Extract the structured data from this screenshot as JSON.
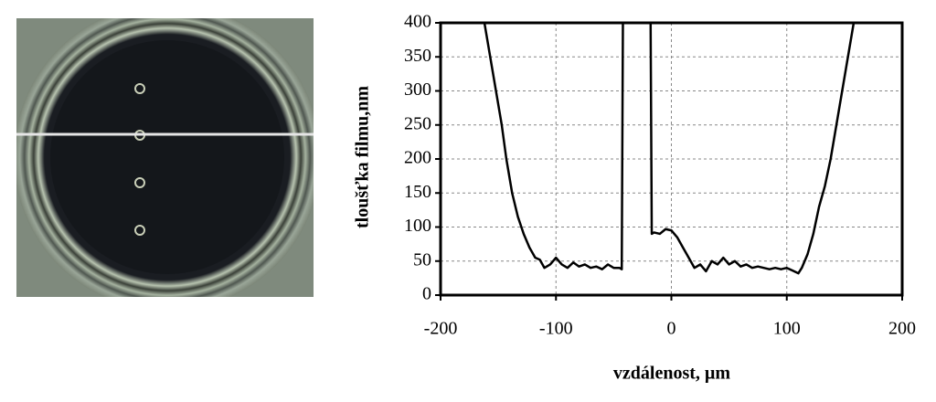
{
  "chart_data": {
    "type": "line",
    "x_label": "vzdálenost,  µm",
    "y_label": "tloušťka filmu,nm",
    "xlim": [
      -200,
      200
    ],
    "xticks": [
      -200,
      -100,
      0,
      100,
      200
    ],
    "ylim": [
      0,
      400
    ],
    "yticks": [
      0,
      50,
      100,
      150,
      200,
      250,
      300,
      350,
      400
    ],
    "grid": true,
    "series": [
      {
        "color": "#000000",
        "x": [
          -162,
          -157,
          -152,
          -147,
          -143,
          -138,
          -133,
          -128,
          -123,
          -118,
          -114,
          -110,
          -105,
          -100,
          -95,
          -90,
          -85,
          -80,
          -75,
          -70,
          -65,
          -60,
          -55,
          -50,
          -45,
          -43,
          -42,
          -30,
          -18,
          -17,
          -15,
          -10,
          -5,
          0,
          5,
          10,
          15,
          20,
          25,
          30,
          35,
          40,
          45,
          50,
          55,
          60,
          65,
          70,
          75,
          80,
          85,
          90,
          95,
          100,
          105,
          110,
          113,
          118,
          123,
          128,
          133,
          138,
          143,
          148,
          153,
          158
        ],
        "values": [
          400,
          350,
          300,
          250,
          200,
          150,
          115,
          90,
          70,
          55,
          52,
          40,
          45,
          55,
          45,
          40,
          48,
          42,
          45,
          40,
          42,
          38,
          45,
          40,
          40,
          38,
          400,
          null,
          400,
          90,
          92,
          90,
          97,
          95,
          85,
          70,
          55,
          40,
          45,
          35,
          50,
          45,
          55,
          45,
          50,
          42,
          45,
          40,
          42,
          40,
          38,
          40,
          38,
          40,
          36,
          32,
          40,
          60,
          90,
          130,
          160,
          200,
          250,
          300,
          350,
          400
        ]
      }
    ]
  }
}
